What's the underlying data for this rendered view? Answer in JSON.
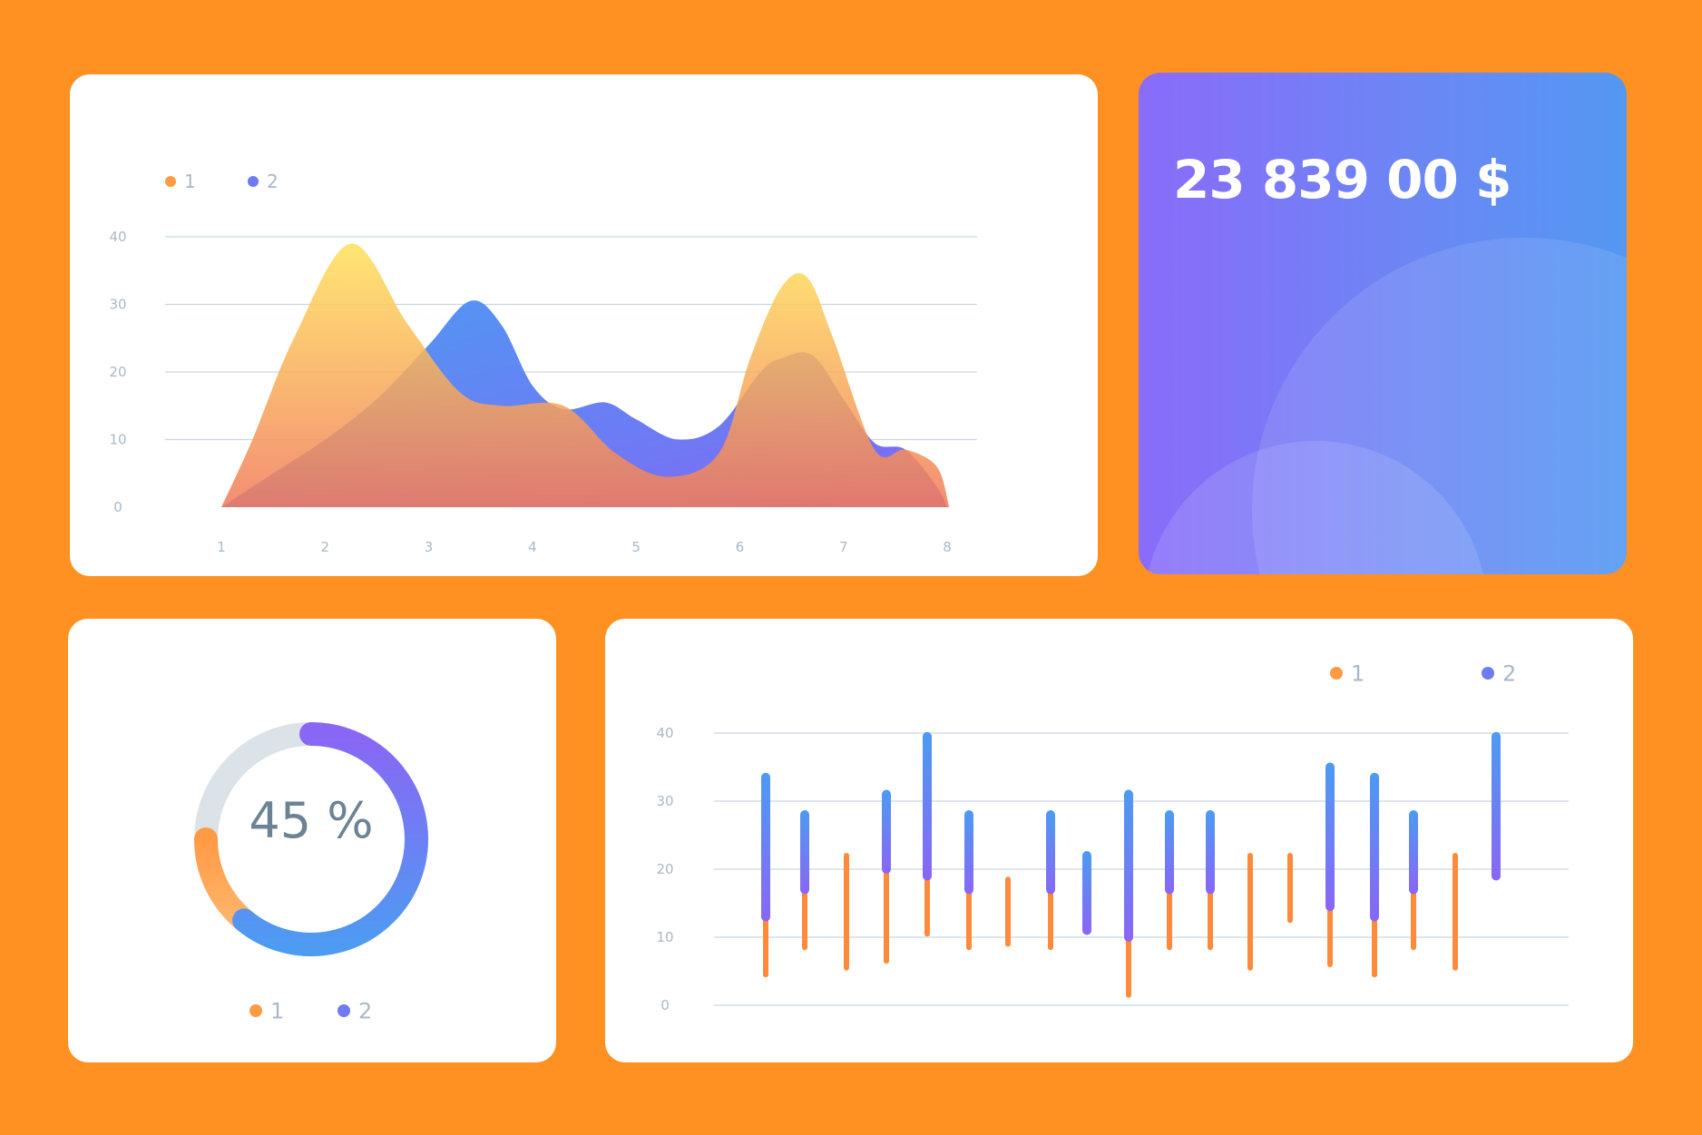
{
  "total": {
    "value": "23 839 00 $"
  },
  "colors": {
    "series1": "#FF9A45",
    "series2": "#6F7BF2",
    "background": "#FF9122",
    "grid": "#C9D6E1",
    "ticks": "#A9B8C6"
  },
  "chart_data": [
    {
      "type": "area",
      "title": "",
      "legend": [
        "1",
        "2"
      ],
      "x": [
        1,
        2,
        3,
        4,
        5,
        6,
        7,
        8
      ],
      "xticks": [
        "1",
        "2",
        "3",
        "4",
        "5",
        "6",
        "7",
        "8"
      ],
      "yticks": [
        "0",
        "10",
        "20",
        "30",
        "40"
      ],
      "ylim": [
        0,
        40
      ],
      "grid": true,
      "series": [
        {
          "name": "1",
          "points": [
            [
              1,
              0
            ],
            [
              1.3,
              10
            ],
            [
              1.7,
              25
            ],
            [
              2.25,
              39
            ],
            [
              2.8,
              27
            ],
            [
              3.3,
              17
            ],
            [
              3.7,
              15
            ],
            [
              4.3,
              15
            ],
            [
              4.8,
              8
            ],
            [
              5.3,
              4.5
            ],
            [
              5.8,
              8
            ],
            [
              6.1,
              22
            ],
            [
              6.4,
              32.5
            ],
            [
              6.65,
              34
            ],
            [
              6.9,
              25
            ],
            [
              7.3,
              8.5
            ],
            [
              7.6,
              8.5
            ],
            [
              7.9,
              6
            ],
            [
              8.02,
              0
            ]
          ]
        },
        {
          "name": "2",
          "points": [
            [
              1,
              0
            ],
            [
              1.5,
              5
            ],
            [
              2,
              10
            ],
            [
              2.5,
              16
            ],
            [
              3,
              24
            ],
            [
              3.4,
              30.5
            ],
            [
              3.7,
              27
            ],
            [
              4,
              18
            ],
            [
              4.3,
              14.5
            ],
            [
              4.7,
              15.5
            ],
            [
              5,
              13
            ],
            [
              5.4,
              10
            ],
            [
              5.8,
              12
            ],
            [
              6.2,
              20
            ],
            [
              6.4,
              22
            ],
            [
              6.7,
              22.5
            ],
            [
              7,
              16
            ],
            [
              7.3,
              9.5
            ],
            [
              7.6,
              8.5
            ],
            [
              7.9,
              3
            ],
            [
              8,
              0
            ]
          ]
        }
      ]
    },
    {
      "type": "pie",
      "title": "",
      "label": "45 %",
      "value": 45,
      "legend": [
        "1",
        "2"
      ]
    },
    {
      "type": "bar",
      "title": "",
      "legend": [
        "1",
        "2"
      ],
      "yticks": [
        "0",
        "10",
        "20",
        "30",
        "40"
      ],
      "ylim": [
        0,
        40
      ],
      "grid": true,
      "series": [
        {
          "name": "1",
          "ranges": [
            [
              4.5,
              13
            ],
            [
              8.5,
              17
            ],
            [
              5.5,
              22
            ],
            [
              6.5,
              20
            ],
            [
              10.5,
              19
            ],
            [
              8.5,
              17
            ],
            [
              9,
              18.5
            ],
            [
              8.5,
              17
            ],
            null,
            [
              1.5,
              10
            ],
            [
              8.5,
              17
            ],
            [
              8.5,
              17
            ],
            [
              5.5,
              22
            ],
            [
              12.5,
              22
            ],
            [
              6,
              14.5
            ],
            [
              4.5,
              13
            ],
            [
              8.5,
              17
            ],
            [
              5.5,
              22
            ],
            null
          ]
        },
        {
          "name": "2",
          "ranges": [
            [
              13,
              33.5
            ],
            [
              17,
              28
            ],
            null,
            [
              20,
              31
            ],
            [
              19,
              39.5
            ],
            [
              17,
              28
            ],
            null,
            [
              17,
              28
            ],
            [
              11,
              22
            ],
            [
              10,
              31
            ],
            [
              17,
              28
            ],
            [
              17,
              28
            ],
            null,
            null,
            [
              14.5,
              35
            ],
            [
              13,
              33.5
            ],
            [
              17,
              28
            ],
            null,
            [
              19,
              39.5
            ]
          ]
        }
      ]
    }
  ]
}
